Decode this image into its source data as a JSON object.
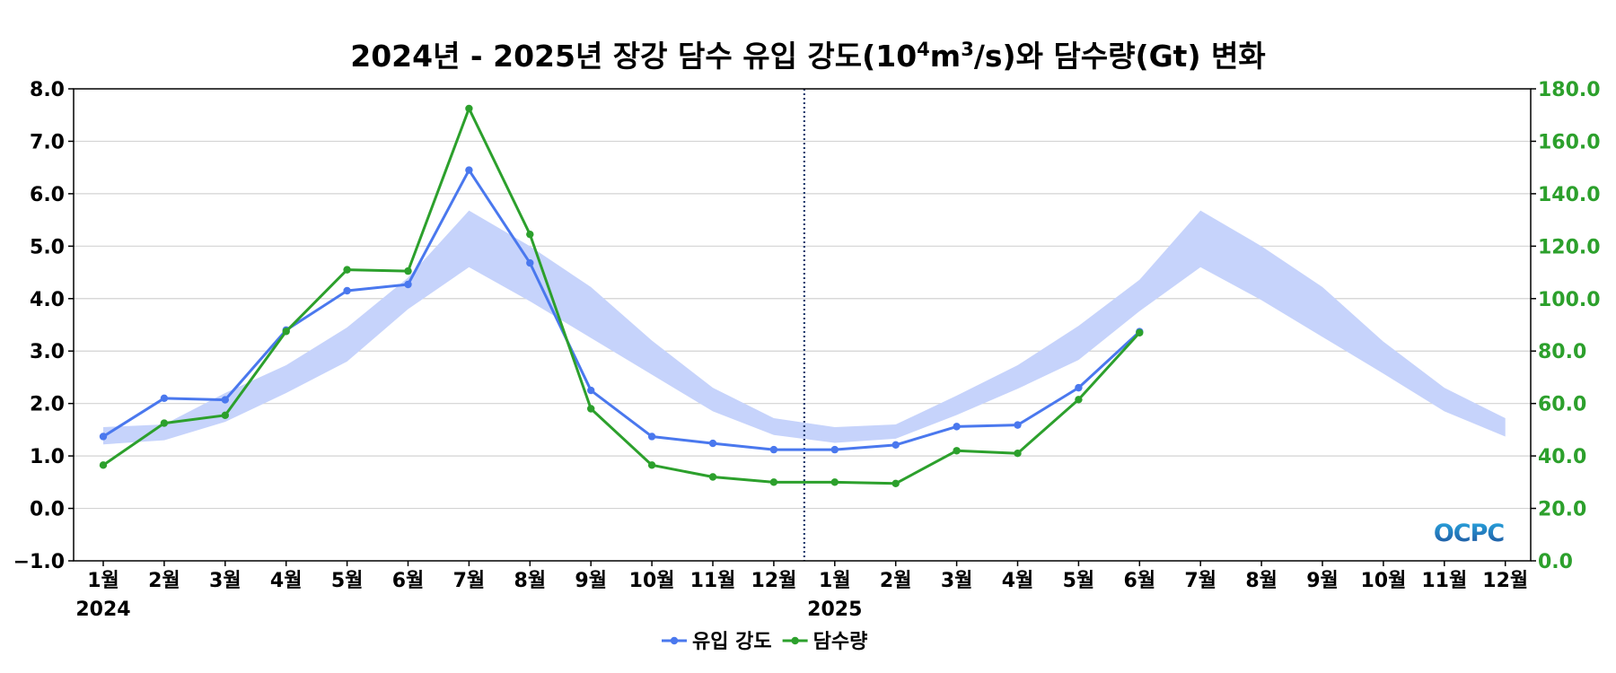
{
  "chart_data": {
    "type": "line",
    "title": "2024년 - 2025년 장강 담수 유입 강도(10⁴m³/s)와 담수량(Gt) 변화",
    "title_parts": {
      "before": "2024년 - 2025년 장강 담수 유입 강도(10",
      "sup1": "4",
      "mid": "m",
      "sup2": "3",
      "after": "/s)와 담수량(Gt) 변화"
    },
    "categories": [
      "1월",
      "2월",
      "3월",
      "4월",
      "5월",
      "6월",
      "7월",
      "8월",
      "9월",
      "10월",
      "11월",
      "12월",
      "1월",
      "2월",
      "3월",
      "4월",
      "5월",
      "6월",
      "7월",
      "8월",
      "9월",
      "10월",
      "11월",
      "12월"
    ],
    "year_labels": [
      {
        "index": 0,
        "label": "2024"
      },
      {
        "index": 12,
        "label": "2025"
      }
    ],
    "divider_after_index": 11,
    "y_left": {
      "ylim": [
        -1.0,
        8.0
      ],
      "ticks": [
        "−1.0",
        "0.0",
        "1.0",
        "2.0",
        "3.0",
        "4.0",
        "5.0",
        "6.0",
        "7.0",
        "8.0"
      ],
      "tick_values": [
        -1,
        0,
        1,
        2,
        3,
        4,
        5,
        6,
        7,
        8
      ]
    },
    "y_right": {
      "ylim": [
        0,
        180
      ],
      "ticks": [
        "0.0",
        "20.0",
        "40.0",
        "60.0",
        "80.0",
        "100.0",
        "120.0",
        "140.0",
        "160.0",
        "180.0"
      ],
      "tick_values": [
        0,
        20,
        40,
        60,
        80,
        100,
        120,
        140,
        160,
        180
      ]
    },
    "band": {
      "axis": "left",
      "lower": [
        1.22,
        1.3,
        1.65,
        2.2,
        2.8,
        3.8,
        4.6,
        3.95,
        3.25,
        2.55,
        1.85,
        1.4,
        1.25,
        1.33,
        1.78,
        2.28,
        2.83,
        3.76,
        4.6,
        3.97,
        3.27,
        2.57,
        1.85,
        1.37
      ],
      "upper": [
        1.55,
        1.6,
        2.2,
        2.73,
        3.45,
        4.4,
        5.68,
        5.0,
        4.22,
        3.2,
        2.3,
        1.72,
        1.55,
        1.6,
        2.15,
        2.73,
        3.48,
        4.36,
        5.68,
        5.0,
        4.22,
        3.18,
        2.3,
        1.72
      ],
      "color": "#c6d3fb"
    },
    "series": [
      {
        "name": "유입 강도",
        "axis": "left",
        "color": "#4a78ee",
        "values": [
          1.37,
          2.1,
          2.07,
          3.4,
          4.15,
          4.27,
          6.45,
          4.68,
          2.25,
          1.37,
          1.24,
          1.12,
          1.12,
          1.21,
          1.56,
          1.59,
          2.3,
          3.37,
          null,
          null,
          null,
          null,
          null,
          null
        ]
      },
      {
        "name": "담수량",
        "axis": "right",
        "color": "#2ca02c",
        "values": [
          36.5,
          52.5,
          55.5,
          87.5,
          111.0,
          110.5,
          172.5,
          124.5,
          58.0,
          36.5,
          32.0,
          30.0,
          30.0,
          29.5,
          42.0,
          41.0,
          61.5,
          87.0,
          null,
          null,
          null,
          null,
          null,
          null
        ]
      }
    ],
    "legend": {
      "placement": "bottom-center"
    },
    "grid": true,
    "watermark": "OCPC"
  },
  "colors": {
    "right_axis": "#2ca02c",
    "divider": "#1f3a6e"
  }
}
